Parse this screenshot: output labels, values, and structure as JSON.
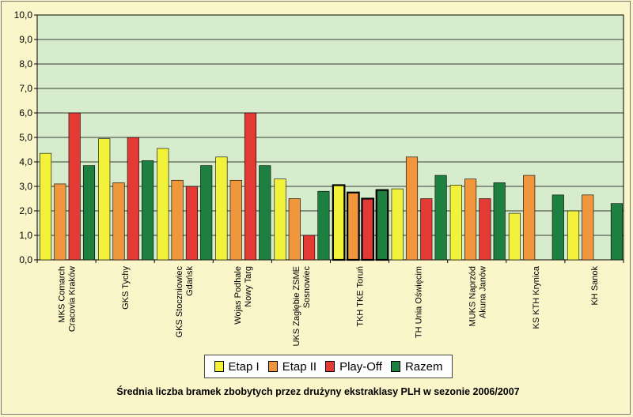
{
  "chart_data": {
    "type": "bar",
    "title": "Średnia liczba bramek zbobytych przez drużyny ekstraklasy PLH w sezonie 2006/2007",
    "categories": [
      [
        "MKS Comarch",
        "Cracovia Kraków"
      ],
      [
        "GKS Tychy"
      ],
      [
        "GKS Stoczniowiec",
        "Gdańsk"
      ],
      [
        "Wojas Podhale",
        "Nowy Targ"
      ],
      [
        "UKS Zagłębie ZSME",
        "Sosnowiec"
      ],
      [
        "TKH TKE Toruń"
      ],
      [
        "TH Unia Oświęcim"
      ],
      [
        "MUKS Naprzód",
        "Akuna Janów"
      ],
      [
        "KS KTH Krynica"
      ],
      [
        "KH Sanok"
      ]
    ],
    "series": [
      {
        "name": "Etap I",
        "color": "#f2f23a",
        "values": [
          4.35,
          4.95,
          4.55,
          4.2,
          3.3,
          3.05,
          2.9,
          3.05,
          1.9,
          2.0
        ]
      },
      {
        "name": "Etap II",
        "color": "#f0963c",
        "values": [
          3.1,
          3.15,
          3.25,
          3.25,
          2.5,
          2.75,
          4.2,
          3.3,
          3.45,
          2.65
        ]
      },
      {
        "name": "Play-Off",
        "color": "#e33a36",
        "values": [
          6.0,
          5.0,
          3.0,
          6.0,
          1.0,
          2.5,
          2.5,
          2.5,
          null,
          null
        ]
      },
      {
        "name": "Razem",
        "color": "#1e8040",
        "values": [
          3.85,
          4.05,
          3.85,
          3.85,
          2.8,
          2.85,
          3.45,
          3.15,
          2.65,
          2.3
        ]
      }
    ],
    "highlighted_category_index": 5,
    "y_ticks": [
      "0,0",
      "1,0",
      "2,0",
      "3,0",
      "4,0",
      "5,0",
      "6,0",
      "7,0",
      "8,0",
      "9,0",
      "10,0"
    ],
    "ylim": [
      0,
      10
    ],
    "grid": true,
    "legend_position": "bottom",
    "plot_background": "#d7eccd"
  }
}
